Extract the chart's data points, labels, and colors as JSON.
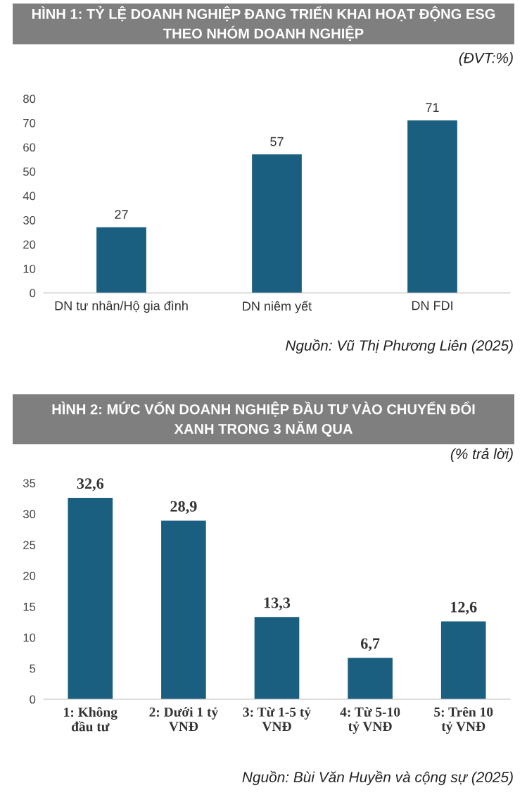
{
  "chart_data": [
    {
      "type": "bar",
      "title": "HÌNH 1: TỶ LỆ DOANH NGHIỆP ĐANG TRIỂN KHAI HOẠT ĐỘNG ESG\nTHEO NHÓM DOANH NGHIỆP",
      "subtitle": "(ĐVT:%)",
      "categories": [
        "DN tư nhân/Hộ gia đình",
        "DN niêm yết",
        "DN FDI"
      ],
      "values": [
        27,
        57,
        71
      ],
      "color": "#1a5f80",
      "ylim": [
        0,
        80
      ],
      "yticks": [
        0,
        10,
        20,
        30,
        40,
        50,
        60,
        70,
        80
      ],
      "grid": false,
      "data_labels": true,
      "annotations": [
        "Nguồn: Vũ Thị Phương Liên (2025)"
      ]
    },
    {
      "type": "bar",
      "title": "HÌNH 2: MỨC VỐN DOANH NGHIỆP ĐẦU TƯ VÀO CHUYỂN ĐỔI\nXANH TRONG 3 NĂM QUA",
      "subtitle": "(% trả lời)",
      "categories": [
        "1: Không\nđầu tư",
        "2: Dưới 1 tỷ\nVNĐ",
        "3: Từ 1-5 tỷ\nVNĐ",
        "4: Từ 5-10\ntỷ VNĐ",
        "5: Trên 10\ntỷ VNĐ"
      ],
      "values": [
        32.6,
        28.9,
        13.3,
        6.7,
        12.6
      ],
      "value_labels": [
        "32,6",
        "28,9",
        "13,3",
        "6,7",
        "12,6"
      ],
      "color": "#1a5f80",
      "ylim": [
        0,
        35
      ],
      "yticks": [
        0,
        5,
        10,
        15,
        20,
        25,
        30,
        35
      ],
      "grid": false,
      "annotations": [
        "Nguồn: Bùi Văn Huyền và cộng sự (2025)"
      ]
    }
  ]
}
